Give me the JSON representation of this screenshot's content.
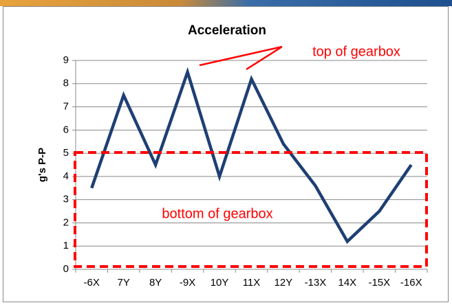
{
  "chart_data": {
    "type": "line",
    "title": "Acceleration",
    "y_label": "g's P-P",
    "categories": [
      "-6X",
      "7Y",
      "8Y",
      "-9X",
      "10Y",
      "11X",
      "12Y",
      "-13X",
      "14X",
      "-15X",
      "-16X"
    ],
    "series": [
      {
        "name": "Acceleration",
        "color": "#1f3f74",
        "values": [
          3.5,
          7.5,
          4.5,
          8.5,
          4.0,
          8.2,
          5.4,
          3.6,
          1.2,
          2.5,
          4.5
        ]
      }
    ],
    "ylim": [
      0,
      9
    ],
    "yticks": [
      0,
      1,
      2,
      3,
      4,
      5,
      6,
      7,
      8,
      9
    ],
    "grid": true,
    "legend": false,
    "annotations": [
      "top of gearbox",
      "bottom of gearbox"
    ]
  }
}
